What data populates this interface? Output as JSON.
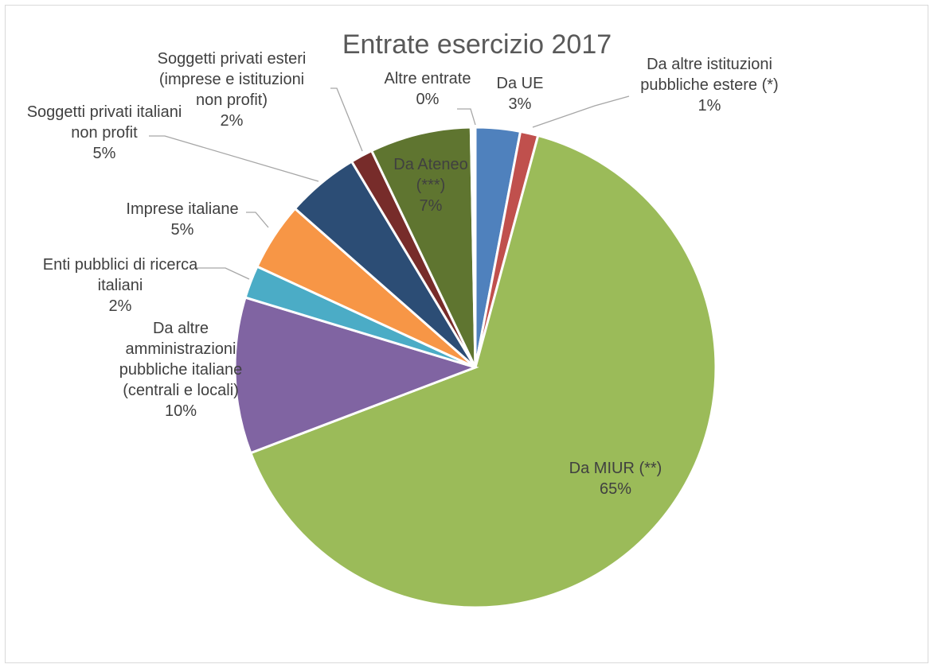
{
  "chart_data": {
    "type": "pie",
    "title": "Entrate esercizio 2017",
    "slices": [
      {
        "label": [
          "Da UE"
        ],
        "value": 3,
        "value_label": "3%",
        "color": "#4f81bd"
      },
      {
        "label": [
          "Da altre istituzioni",
          "pubbliche estere (*)"
        ],
        "value": 1.2,
        "value_label": "1%",
        "color": "#c0504d"
      },
      {
        "label": [
          "Da MIUR (**)"
        ],
        "value": 65,
        "value_label": "65%",
        "color": "#9bbb59"
      },
      {
        "label": [
          "Da altre",
          "amministrazioni",
          "pubbliche italiane",
          "(centrali e locali)"
        ],
        "value": 10.5,
        "value_label": "10%",
        "color": "#8064a2"
      },
      {
        "label": [
          "Enti pubblici di ricerca",
          "italiani"
        ],
        "value": 2.2,
        "value_label": "2%",
        "color": "#4bacc6"
      },
      {
        "label": [
          "Imprese italiane"
        ],
        "value": 4.6,
        "value_label": "5%",
        "color": "#f79646"
      },
      {
        "label": [
          "Soggetti privati italiani",
          "non profit"
        ],
        "value": 4.9,
        "value_label": "5%",
        "color": "#2c4d75"
      },
      {
        "label": [
          "Soggetti privati esteri",
          "(imprese e istituzioni",
          "non profit)"
        ],
        "value": 1.5,
        "value_label": "2%",
        "color": "#772c2a"
      },
      {
        "label": [
          "Da Ateneo",
          "(***)"
        ],
        "value": 6.8,
        "value_label": "7%",
        "color": "#5f7530"
      },
      {
        "label": [
          "Altre entrate"
        ],
        "value": 0.3,
        "value_label": "0%",
        "color": "#ffffff"
      }
    ],
    "start_angle_deg": 0,
    "direction": "clockwise",
    "legend": "none"
  }
}
